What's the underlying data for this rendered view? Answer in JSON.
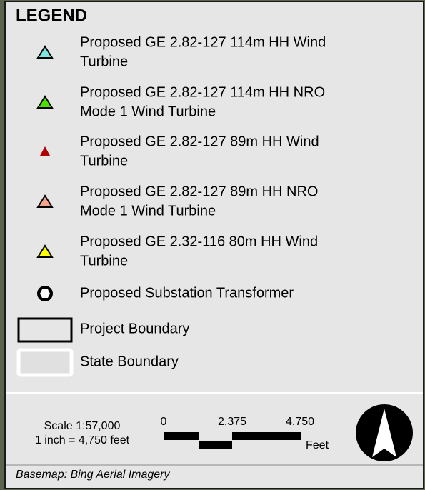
{
  "legend": {
    "title": "LEGEND",
    "items": [
      {
        "lines": [
          "Proposed GE 2.82-127 114m HH Wind",
          "Turbine"
        ]
      },
      {
        "lines": [
          "Proposed GE 2.82-127 114m HH NRO",
          "Mode 1 Wind Turbine"
        ]
      },
      {
        "lines": [
          "Proposed GE 2.82-127 89m HH Wind",
          "Turbine"
        ]
      },
      {
        "lines": [
          "Proposed GE 2.82-127 89m HH NRO",
          "Mode 1 Wind Turbine"
        ]
      },
      {
        "lines": [
          "Proposed GE 2.32-116 80m HH Wind",
          "Turbine"
        ]
      },
      {
        "lines": [
          "Proposed Substation Transformer"
        ]
      },
      {
        "lines": [
          "Project Boundary"
        ]
      },
      {
        "lines": [
          "State Boundary"
        ]
      }
    ],
    "scale": {
      "ratio": "Scale 1:57,000",
      "inch": "1 inch = 4,750 feet",
      "bar_labels": [
        "0",
        "2,375",
        "4,750"
      ],
      "unit": "Feet"
    },
    "basemap": "Basemap: Bing Aerial Imagery"
  }
}
